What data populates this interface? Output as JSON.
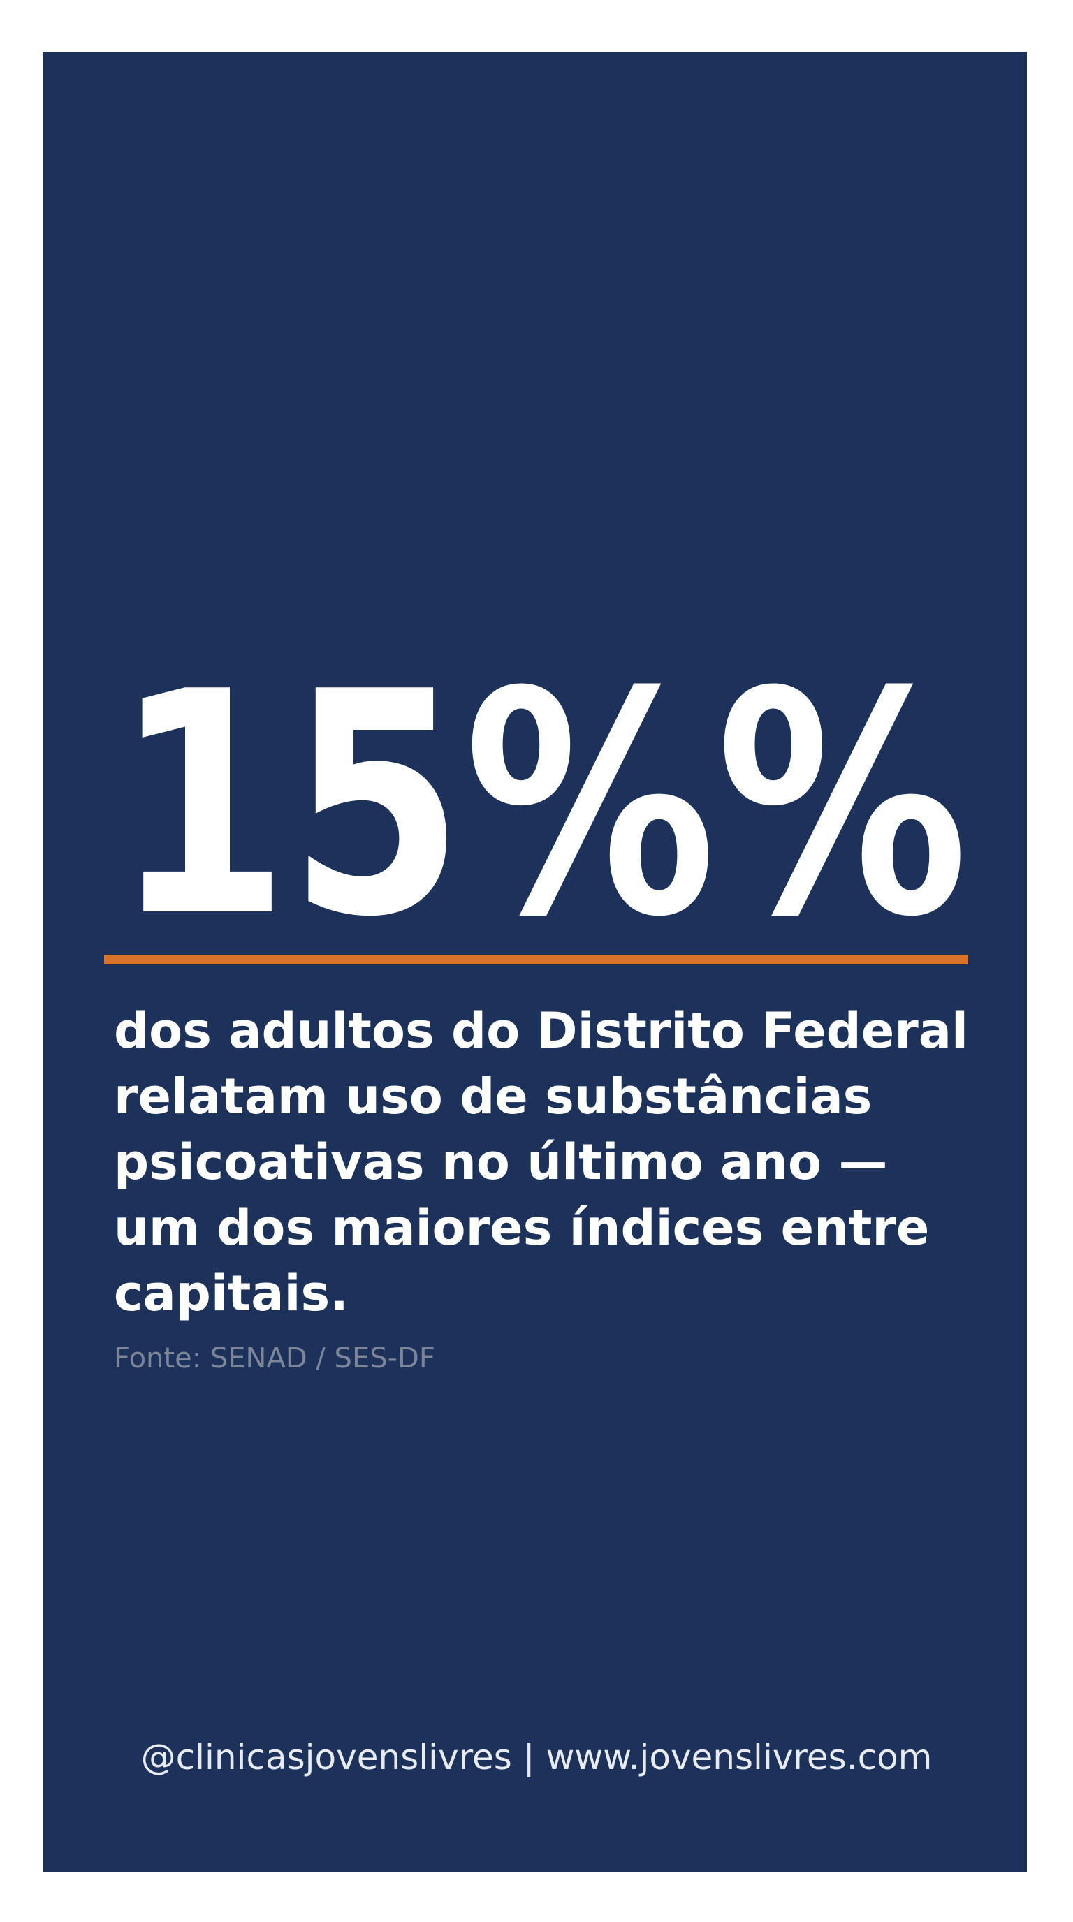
{
  "headline": {
    "value": "15%%"
  },
  "body": {
    "lines": [
      "dos adultos do Distrito Federal",
      "relatam uso de substâncias",
      "psicoativas no último ano —",
      "um dos maiores índices entre",
      "capitais."
    ]
  },
  "source": "Fonte: SENAD / SES-DF",
  "footer": "@clinicasjovenslivres | www.jovenslivres.com"
}
